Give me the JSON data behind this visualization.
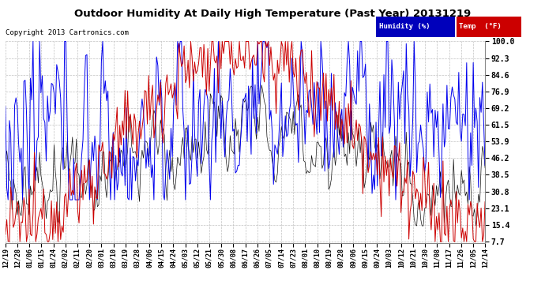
{
  "title": "Outdoor Humidity At Daily High Temperature (Past Year) 20131219",
  "copyright": "Copyright 2013 Cartronics.com",
  "legend_humidity_label": "Humidity (%)",
  "legend_temp_label": "Temp  (°F)",
  "legend_humidity_bg": "#0000bb",
  "legend_temp_bg": "#cc0000",
  "y_ticks": [
    7.7,
    15.4,
    23.1,
    30.8,
    38.5,
    46.2,
    53.9,
    61.5,
    69.2,
    76.9,
    84.6,
    92.3,
    100.0
  ],
  "ylim": [
    7.7,
    100.0
  ],
  "background_color": "#ffffff",
  "plot_bg": "#ffffff",
  "grid_color": "#bbbbbb",
  "humidity_color": "#0000ee",
  "temp_color": "#cc0000",
  "black_color": "#111111",
  "x_tick_labels": [
    "12/19",
    "12/28",
    "01/06",
    "01/15",
    "01/24",
    "02/02",
    "02/11",
    "02/20",
    "03/01",
    "03/10",
    "03/19",
    "03/28",
    "04/06",
    "04/15",
    "04/24",
    "05/03",
    "05/12",
    "05/21",
    "05/30",
    "06/08",
    "06/17",
    "06/26",
    "07/05",
    "07/14",
    "07/23",
    "08/01",
    "08/10",
    "08/19",
    "08/28",
    "09/06",
    "09/15",
    "09/24",
    "10/03",
    "10/12",
    "10/21",
    "10/30",
    "11/08",
    "11/17",
    "11/26",
    "12/05",
    "12/14"
  ],
  "n_points": 366,
  "seed": 12345
}
